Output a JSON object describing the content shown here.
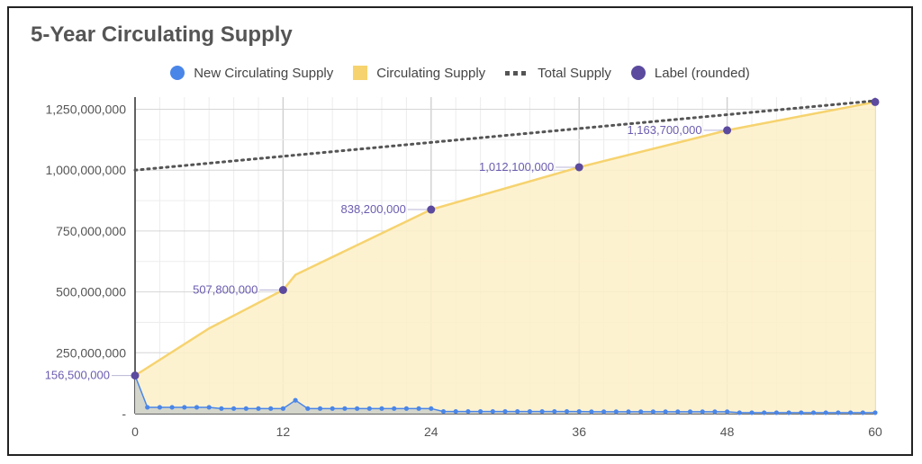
{
  "title": "5-Year Circulating Supply",
  "legend": [
    {
      "label": "New Circulating Supply",
      "color": "#4a86e8",
      "icon": "dot"
    },
    {
      "label": "Circulating Supply",
      "color": "#f6d36f",
      "icon": "square"
    },
    {
      "label": "Total Supply",
      "color": "#555555",
      "icon": "dashes"
    },
    {
      "label": "Label (rounded)",
      "color": "#5b4a9e",
      "icon": "dot"
    }
  ],
  "chart_data": {
    "type": "area",
    "x_ticks": [
      "0",
      "12",
      "24",
      "36",
      "48",
      "60"
    ],
    "y_ticks": [
      "-",
      "250,000,000",
      "500,000,000",
      "750,000,000",
      "1,000,000,000",
      "1,250,000,000"
    ],
    "xlim": [
      0,
      60
    ],
    "ylim": [
      0,
      1300000000
    ],
    "grid": true,
    "legend_position": "top",
    "series": [
      {
        "name": "Total Supply",
        "color": "#555555",
        "style": "dotted",
        "x": [
          0,
          60
        ],
        "y": [
          1000000000,
          1285000000
        ]
      },
      {
        "name": "Circulating Supply",
        "color": "#f6d36f",
        "style": "area",
        "x": [
          0,
          6,
          12,
          13,
          24,
          36,
          48,
          60
        ],
        "y": [
          156500000,
          350000000,
          507800000,
          570000000,
          838200000,
          1012100000,
          1163700000,
          1280000000
        ]
      },
      {
        "name": "New Circulating Supply",
        "color": "#4a86e8",
        "style": "area-markers",
        "x": [
          0,
          1,
          2,
          3,
          4,
          5,
          6,
          7,
          8,
          9,
          10,
          11,
          12,
          13,
          14,
          15,
          16,
          17,
          18,
          19,
          20,
          21,
          22,
          23,
          24,
          25,
          26,
          27,
          28,
          29,
          30,
          31,
          32,
          33,
          34,
          35,
          36,
          37,
          38,
          39,
          40,
          41,
          42,
          43,
          44,
          45,
          46,
          47,
          48,
          49,
          50,
          51,
          52,
          53,
          54,
          55,
          56,
          57,
          58,
          59,
          60
        ],
        "y": [
          156500000,
          26000000,
          26000000,
          26000000,
          26000000,
          26000000,
          26000000,
          21000000,
          21000000,
          21000000,
          21000000,
          21000000,
          21000000,
          55000000,
          21000000,
          21000000,
          21000000,
          21000000,
          21000000,
          21000000,
          21000000,
          21000000,
          21000000,
          21000000,
          21000000,
          9000000,
          9000000,
          9000000,
          9000000,
          9000000,
          9000000,
          9000000,
          9000000,
          9000000,
          9000000,
          9000000,
          9000000,
          8000000,
          8000000,
          8000000,
          8000000,
          8000000,
          8000000,
          8000000,
          8000000,
          8000000,
          8000000,
          8000000,
          8000000,
          4000000,
          4000000,
          4000000,
          4000000,
          4000000,
          4000000,
          4000000,
          4000000,
          4000000,
          4000000,
          4000000,
          4000000
        ]
      },
      {
        "name": "Label (rounded)",
        "color": "#5b4a9e",
        "style": "points",
        "x": [
          0,
          12,
          24,
          36,
          48,
          60
        ],
        "y": [
          156500000,
          507800000,
          838200000,
          1012100000,
          1163700000,
          1280000000
        ],
        "labels": [
          "156,500,000",
          "507,800,000",
          "838,200,000",
          "1,012,100,000",
          "1,163,700,000",
          ""
        ]
      }
    ]
  }
}
